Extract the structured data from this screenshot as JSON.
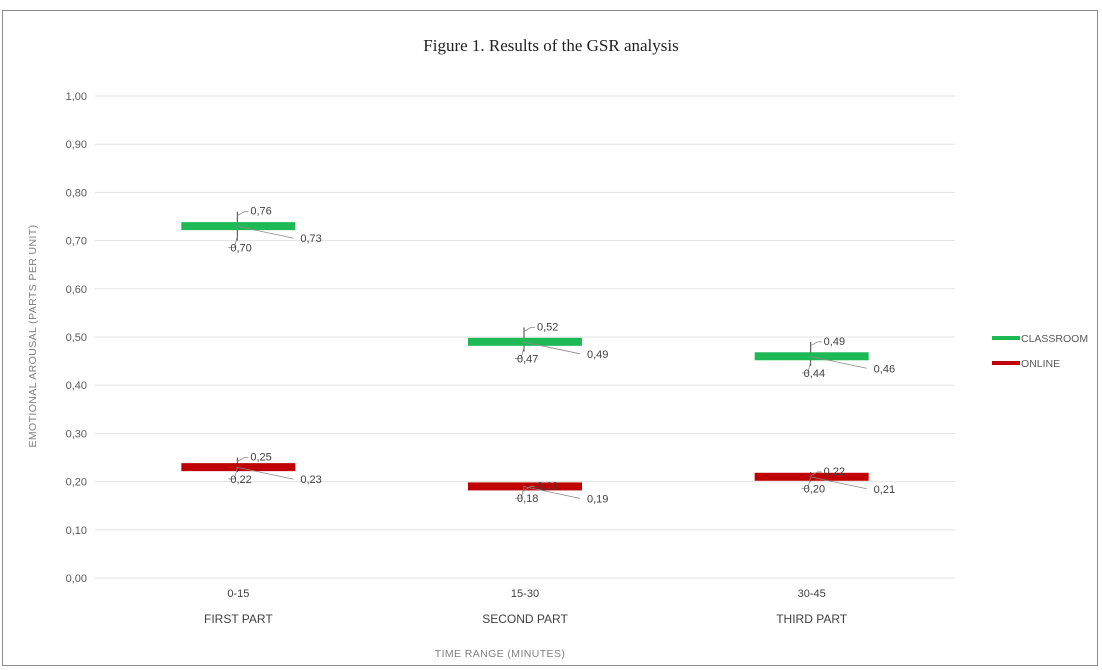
{
  "chart_data": {
    "type": "stock",
    "title": "Figure 1. Results of the GSR analysis",
    "xlabel": "TIME RANGE (MINUTES)",
    "ylabel": "EMOTIONAL AROUSAL (PARTS PER UNIT)",
    "ylim": [
      0,
      1
    ],
    "yticks": [
      "0,00",
      "0,10",
      "0,20",
      "0,30",
      "0,40",
      "0,50",
      "0,60",
      "0,70",
      "0,80",
      "0,90",
      "1,00"
    ],
    "categories": [
      {
        "range": "0-15",
        "part": "FIRST PART"
      },
      {
        "range": "15-30",
        "part": "SECOND PART"
      },
      {
        "range": "30-45",
        "part": "THIRD PART"
      }
    ],
    "series": [
      {
        "name": "CLASSROOM",
        "color": "#1db954",
        "points": [
          {
            "high": 0.76,
            "low": 0.7,
            "value": 0.73,
            "high_label": "0,76",
            "low_label": "0,70",
            "value_label": "0,73"
          },
          {
            "high": 0.52,
            "low": 0.47,
            "value": 0.49,
            "high_label": "0,52",
            "low_label": "0,47",
            "value_label": "0,49"
          },
          {
            "high": 0.49,
            "low": 0.44,
            "value": 0.46,
            "high_label": "0,49",
            "low_label": "0,44",
            "value_label": "0,46"
          }
        ]
      },
      {
        "name": "ONLINE",
        "color": "#c00000",
        "points": [
          {
            "high": 0.25,
            "low": 0.22,
            "value": 0.23,
            "high_label": "0,25",
            "low_label": "0,22",
            "value_label": "0,23"
          },
          {
            "high": 0.19,
            "low": 0.18,
            "value": 0.19,
            "high_label": "0,19",
            "low_label": "0,18",
            "value_label": "0,19"
          },
          {
            "high": 0.22,
            "low": 0.2,
            "value": 0.21,
            "high_label": "0,22",
            "low_label": "0,20",
            "value_label": "0,21"
          }
        ]
      }
    ],
    "legend": "right",
    "grid": true
  }
}
